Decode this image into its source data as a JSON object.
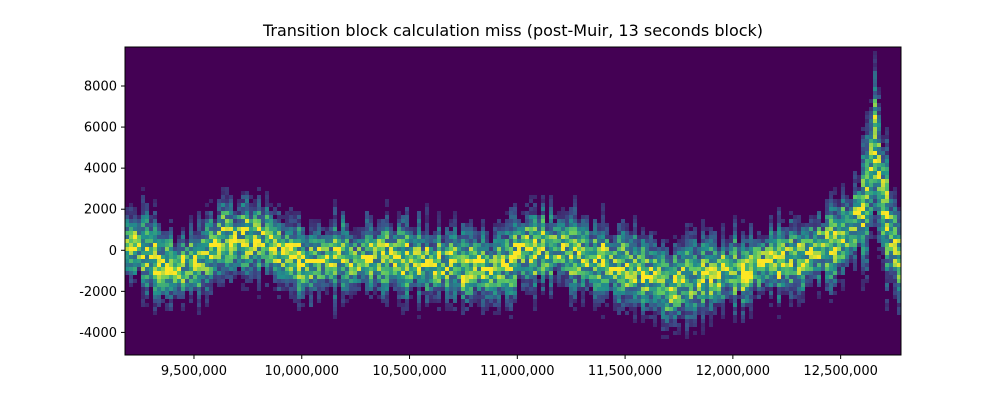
{
  "chart_data": {
    "type": "heatmap",
    "title": "Transition block calculation miss (post-Muir, 13 seconds block)",
    "xlabel": "",
    "ylabel": "",
    "xlim": [
      9180000,
      12780000
    ],
    "ylim": [
      -5100,
      9900
    ],
    "x_ticks": [
      {
        "value": 9500000,
        "label": "9,500,000"
      },
      {
        "value": 10000000,
        "label": "10,000,000"
      },
      {
        "value": 10500000,
        "label": "10,500,000"
      },
      {
        "value": 11000000,
        "label": "11,000,000"
      },
      {
        "value": 11500000,
        "label": "11,500,000"
      },
      {
        "value": 12000000,
        "label": "12,000,000"
      },
      {
        "value": 12500000,
        "label": "12,500,000"
      }
    ],
    "y_ticks": [
      {
        "value": 8000,
        "label": "8000"
      },
      {
        "value": 6000,
        "label": "6000"
      },
      {
        "value": 4000,
        "label": "4000"
      },
      {
        "value": 2000,
        "label": "2000"
      },
      {
        "value": 0,
        "label": "0"
      },
      {
        "value": -2000,
        "label": "-2000"
      },
      {
        "value": -4000,
        "label": "-4000"
      }
    ],
    "colormap": "viridis",
    "background_color": "#440154",
    "trend_centers": [
      [
        9180000,
        200
      ],
      [
        9300000,
        100
      ],
      [
        9400000,
        -900
      ],
      [
        9500000,
        -800
      ],
      [
        9650000,
        600
      ],
      [
        9800000,
        300
      ],
      [
        10000000,
        -300
      ],
      [
        10200000,
        -500
      ],
      [
        10400000,
        -300
      ],
      [
        10500000,
        -600
      ],
      [
        10700000,
        -700
      ],
      [
        10900000,
        -800
      ],
      [
        11000000,
        -400
      ],
      [
        11200000,
        -200
      ],
      [
        11400000,
        -600
      ],
      [
        11600000,
        -1000
      ],
      [
        11700000,
        -1500
      ],
      [
        11900000,
        -700
      ],
      [
        12000000,
        -900
      ],
      [
        12150000,
        -800
      ],
      [
        12300000,
        -500
      ],
      [
        12450000,
        400
      ],
      [
        12560000,
        1500
      ],
      [
        12620000,
        2300
      ],
      [
        12660000,
        5200
      ],
      [
        12700000,
        2000
      ],
      [
        12780000,
        -1000
      ]
    ]
  }
}
